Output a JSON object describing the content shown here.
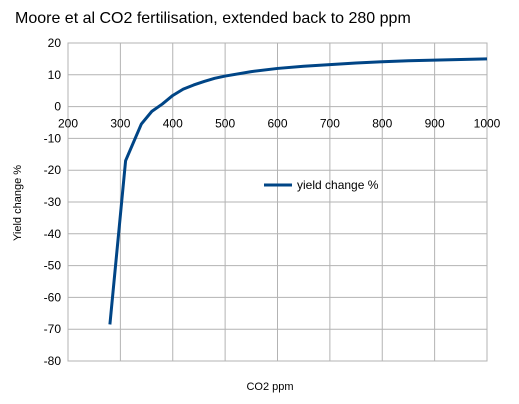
{
  "chart_data": {
    "type": "line",
    "title": "Moore et al CO2 fertilisation, extended back to 280 ppm",
    "xlabel": "CO2 ppm",
    "ylabel": "Yield change %",
    "xlim": [
      200,
      1000
    ],
    "ylim": [
      -80,
      20
    ],
    "xticks": [
      200,
      300,
      400,
      500,
      600,
      700,
      800,
      900,
      1000
    ],
    "yticks": [
      20,
      10,
      0,
      -10,
      -20,
      -30,
      -40,
      -50,
      -60,
      -70,
      -80
    ],
    "grid": true,
    "legend_position": "right",
    "series": [
      {
        "name": "yield change %",
        "color": "#004586",
        "x": [
          280,
          310,
          340,
          360,
          380,
          400,
          420,
          440,
          460,
          480,
          500,
          550,
          600,
          650,
          700,
          750,
          800,
          850,
          900,
          950,
          1000
        ],
        "y": [
          -68.5,
          -17,
          -5.5,
          -1.5,
          0.8,
          3.5,
          5.5,
          6.8,
          7.9,
          8.9,
          9.6,
          11,
          12,
          12.7,
          13.2,
          13.7,
          14.1,
          14.4,
          14.6,
          14.8,
          15
        ]
      }
    ]
  }
}
